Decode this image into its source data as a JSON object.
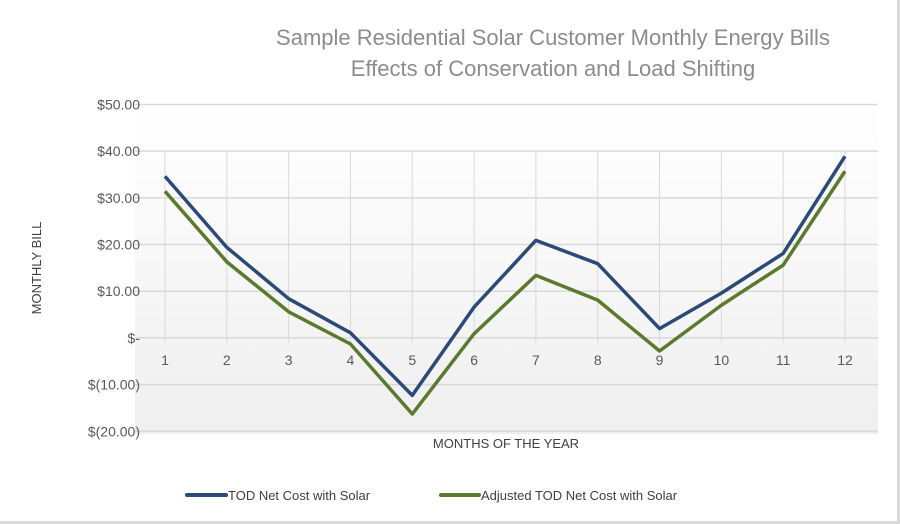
{
  "chart_data": {
    "type": "line",
    "title": [
      "Sample Residential Solar Customer Monthly Energy Bills",
      "Effects of Conservation and Load Shifting"
    ],
    "xlabel": "MONTHS OF THE YEAR",
    "ylabel": "MONTHLY BILL",
    "categories": [
      "1",
      "2",
      "3",
      "4",
      "5",
      "6",
      "7",
      "8",
      "9",
      "10",
      "11",
      "12"
    ],
    "ylim": [
      -20,
      50
    ],
    "yticks": [
      50,
      40,
      30,
      20,
      10,
      0,
      -10,
      -20
    ],
    "ytick_labels": [
      "$50.00",
      "$40.00",
      "$30.00",
      "$20.00",
      "$10.00",
      "$-",
      "$(10.00)",
      "$(20.00)"
    ],
    "grid": true,
    "legend_position": "bottom",
    "series": [
      {
        "name": "TOD Net Cost with Solar",
        "color": "#2b4a78",
        "values": [
          34.6,
          19.4,
          8.4,
          1.1,
          -12.3,
          6.6,
          20.9,
          15.9,
          2.0,
          9.6,
          18.1,
          38.9
        ]
      },
      {
        "name": "Adjusted TOD Net Cost with Solar",
        "color": "#5b7a2d",
        "values": [
          31.4,
          16.3,
          5.6,
          -1.3,
          -16.3,
          0.9,
          13.4,
          8.1,
          -2.8,
          7.0,
          15.6,
          35.7
        ]
      }
    ]
  }
}
